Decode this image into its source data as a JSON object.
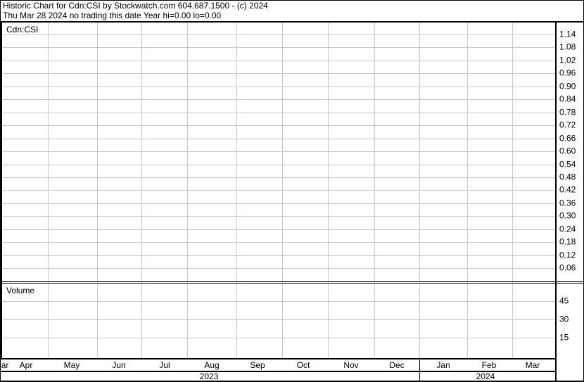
{
  "header": {
    "line1": "Historic Chart for Cdn:CSI by Stockwatch.com 604.687.1500 - (c) 2024",
    "line2": "Thu Mar 28 2024   no trading this date  Year hi=0.00  lo=0.00"
  },
  "chart_data": [
    {
      "type": "line",
      "title": "Cdn:CSI",
      "series": [],
      "yticks": [
        "1.14",
        "1.08",
        "1.02",
        "0.96",
        "0.90",
        "0.84",
        "0.78",
        "0.72",
        "0.66",
        "0.60",
        "0.54",
        "0.48",
        "0.42",
        "0.36",
        "0.30",
        "0.24",
        "0.18",
        "0.12",
        "0.06"
      ],
      "grid": true
    },
    {
      "type": "bar",
      "title": "Volume",
      "series": [],
      "yticks": [
        "45",
        "30",
        "15"
      ],
      "grid": true
    }
  ],
  "xaxis": {
    "months": [
      "ar",
      "Apr",
      "May",
      "Jun",
      "Jul",
      "Aug",
      "Sep",
      "Oct",
      "Nov",
      "Dec",
      "Jan",
      "Feb",
      "Mar"
    ],
    "years": [
      "2023",
      "2024"
    ]
  }
}
